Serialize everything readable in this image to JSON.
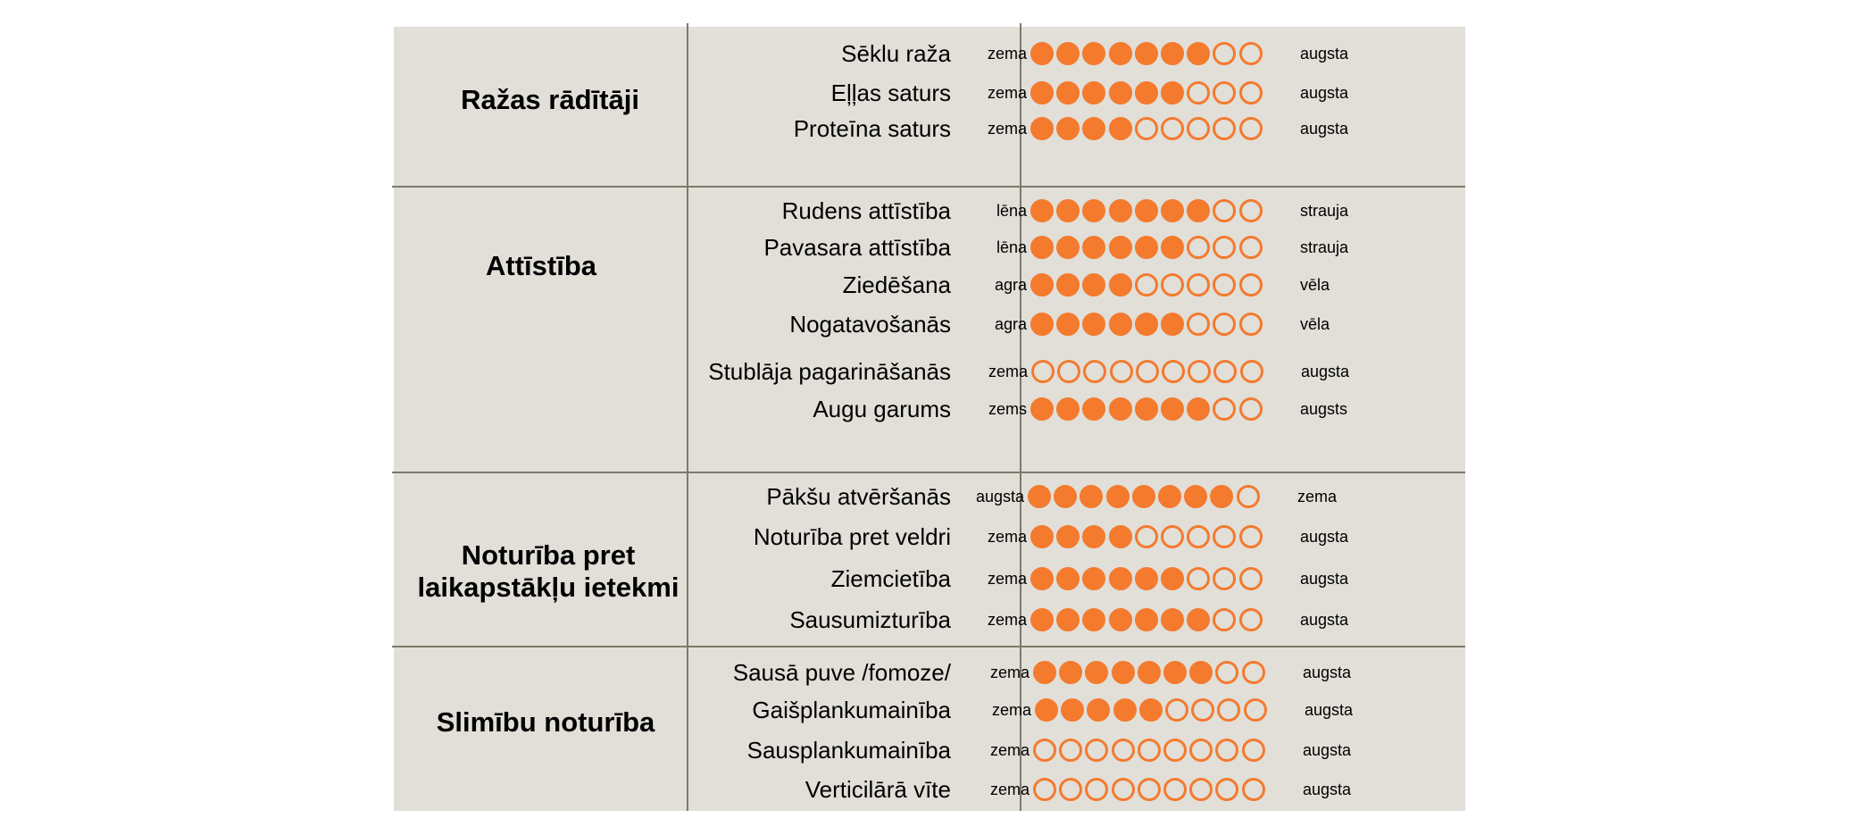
{
  "scale_max": 9,
  "colors": {
    "panel_background": "#e1dfd8",
    "grid_lines": "#7d7a6a",
    "dot_accent": "#f47a2e"
  },
  "sections": [
    {
      "title": "Ražas rādītāji",
      "rows": [
        {
          "criterion": "Sēklu raža",
          "low": "zema",
          "high": "augsta",
          "score": 7
        },
        {
          "criterion": "Eļļas saturs",
          "low": "zema",
          "high": "augsta",
          "score": 6
        },
        {
          "criterion": "Proteīna saturs",
          "low": "zema",
          "high": "augsta",
          "score": 4
        }
      ]
    },
    {
      "title": "Attīstība",
      "rows": [
        {
          "criterion": "Rudens attīstība",
          "low": "lēna",
          "high": "strauja",
          "score": 7
        },
        {
          "criterion": "Pavasara attīstība",
          "low": "lēna",
          "high": "strauja",
          "score": 6
        },
        {
          "criterion": "Ziedēšana",
          "low": "agra",
          "high": "vēla",
          "score": 4
        },
        {
          "criterion": "Nogatavošanās",
          "low": "agra",
          "high": "vēla",
          "score": 6
        },
        {
          "criterion": "Stublāja pagarināšanās",
          "low": "zema",
          "high": "augsta",
          "score": 0
        },
        {
          "criterion": "Augu garums",
          "low": "zems",
          "high": "augsts",
          "score": 7
        }
      ]
    },
    {
      "title": "Noturība pret laikapstākļu ietekmi",
      "rows": [
        {
          "criterion": "Pākšu atvēršanās",
          "low": "augsta",
          "high": "zema",
          "score": 8
        },
        {
          "criterion": "Noturība pret veldri",
          "low": "zema",
          "high": "augsta",
          "score": 4
        },
        {
          "criterion": "Ziemcietība",
          "low": "zema",
          "high": "augsta",
          "score": 6
        },
        {
          "criterion": "Sausumizturība",
          "low": "zema",
          "high": "augsta",
          "score": 7
        }
      ]
    },
    {
      "title": "Slimību noturība",
      "rows": [
        {
          "criterion": "Sausā puve /fomoze/",
          "low": "zema",
          "high": "augsta",
          "score": 7
        },
        {
          "criterion": "Gaišplankumainība",
          "low": "zema",
          "high": "augsta",
          "score": 5
        },
        {
          "criterion": "Sausplankumainība",
          "low": "zema",
          "high": "augsta",
          "score": 0
        },
        {
          "criterion": "Verticilārā vīte",
          "low": "zema",
          "high": "augsta",
          "score": 0
        }
      ]
    }
  ]
}
